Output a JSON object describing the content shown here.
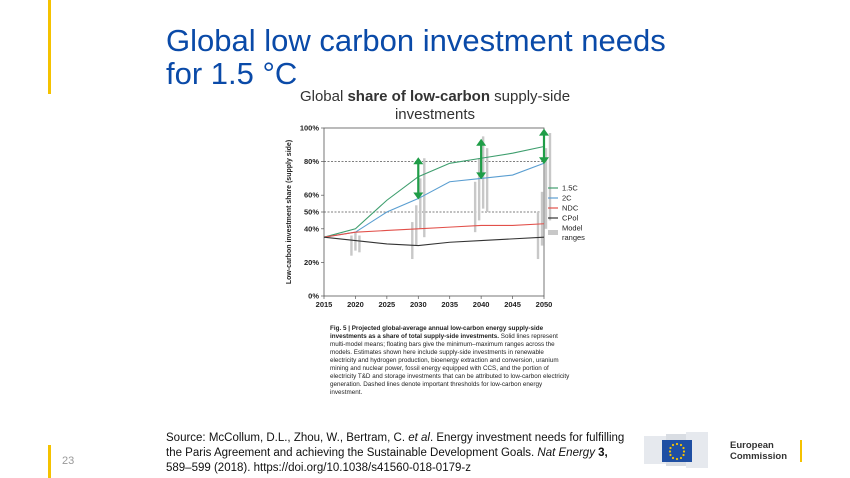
{
  "slide": {
    "title_line1": "Global low carbon investment needs",
    "title_line2": "for 1.5 °C",
    "page_number": "23"
  },
  "chart_heading": {
    "prefix": "Global ",
    "bold": "share of low-carbon",
    "suffix": " supply-side",
    "line2": "investments"
  },
  "caption": {
    "bold": "Fig. 5 | Projected global-average annual low-carbon energy supply-side investments as a share of total supply-side investments.",
    "text": " Solid lines represent multi-model means; floating bars give the minimum–maximum ranges across the models. Estimates shown here include supply-side investments in renewable electricity and hydrogen production, bioenergy extraction and conversion, uranium mining and nuclear power, fossil energy equipped with CCS, and the portion of electricity T&D and storage investments that can be attributed to low-carbon electricity generation. Dashed lines denote important thresholds for low-carbon energy investment."
  },
  "source": {
    "label": "Source:",
    "authors": " McCollum, D.L., Zhou, W., Bertram, C. ",
    "etal": "et al",
    "text1": ". Energy investment needs for fulfilling the Paris Agreement and achieving the Sustainable Development Goals. ",
    "journal": "Nat Energy",
    "volume": " 3,",
    "text2": " 589–599 (2018). https://doi.org/10.1038/s41560-018-0179-z"
  },
  "logo": {
    "line1": "European",
    "line2": "Commission"
  },
  "chart_data": {
    "type": "line",
    "ylabel": "Low-carbon investment share (supply side)",
    "xlabel": "",
    "x": [
      2015,
      2020,
      2025,
      2030,
      2035,
      2040,
      2045,
      2050
    ],
    "xticks": [
      "2015",
      "2020",
      "2025",
      "2030",
      "2035",
      "2040",
      "2045",
      "2050"
    ],
    "yticks": [
      "0%",
      "20%",
      "40%",
      "50%",
      "60%",
      "80%",
      "100%"
    ],
    "ytick_values": [
      0,
      20,
      40,
      50,
      60,
      80,
      100
    ],
    "ylim": [
      0,
      100
    ],
    "xlim": [
      2015,
      2050
    ],
    "thresholds": [
      50,
      80
    ],
    "series": [
      {
        "name": "1.5C",
        "color": "#3e9e6e",
        "values": [
          35,
          40,
          57,
          71,
          79,
          82,
          85,
          89
        ]
      },
      {
        "name": "2C",
        "color": "#5a9ed1",
        "values": [
          35,
          38,
          50,
          58,
          68,
          70,
          72,
          79
        ]
      },
      {
        "name": "NDC",
        "color": "#e2504a",
        "values": [
          35,
          38,
          39,
          40,
          41,
          42,
          42,
          43
        ]
      },
      {
        "name": "CPol",
        "color": "#333333",
        "values": [
          35,
          33,
          31,
          30,
          32,
          33,
          34,
          35
        ]
      }
    ],
    "legend_extra": "Model ranges",
    "legend_position": "right",
    "ranges": [
      {
        "x": 2020,
        "bars": [
          [
            24,
            36
          ],
          [
            27,
            38
          ],
          [
            26,
            36
          ]
        ]
      },
      {
        "x": 2030,
        "bars": [
          [
            22,
            44
          ],
          [
            30,
            54
          ],
          [
            40,
            70
          ],
          [
            35,
            82
          ]
        ]
      },
      {
        "x": 2040,
        "bars": [
          [
            38,
            68
          ],
          [
            45,
            82
          ],
          [
            52,
            95
          ],
          [
            50,
            88
          ]
        ]
      },
      {
        "x": 2050,
        "bars": [
          [
            22,
            50
          ],
          [
            30,
            62
          ],
          [
            40,
            88
          ],
          [
            45,
            97
          ]
        ]
      }
    ],
    "arrows": [
      {
        "x": 2030,
        "from": 58,
        "to": 82
      },
      {
        "x": 2040,
        "from": 70,
        "to": 93
      },
      {
        "x": 2050,
        "from": 79,
        "to": 99
      }
    ],
    "arrow_color": "#1f9d47"
  }
}
